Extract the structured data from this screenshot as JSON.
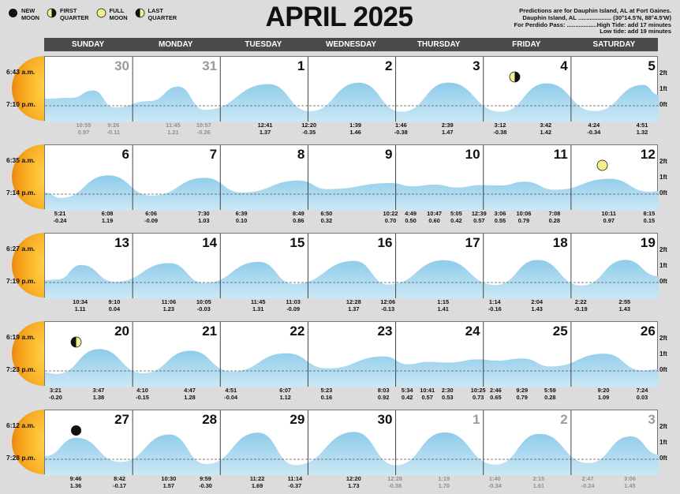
{
  "legend": [
    {
      "icon": "new-moon-icon",
      "label": "NEW\nMOON"
    },
    {
      "icon": "first-quarter-icon",
      "label": "FIRST\nQUARTER"
    },
    {
      "icon": "full-moon-icon",
      "label": "FULL\nMOON"
    },
    {
      "icon": "last-quarter-icon",
      "label": "LAST\nQUARTER"
    }
  ],
  "title": "APRIL 2025",
  "info": {
    "line1": "Predictions are for Dauphin Island, AL at Fort Gaines.",
    "line2": "Dauphin Island, AL .................... (30°14.5'N, 88°4.5'W)",
    "line3": "For Perdido Pass: ..................High Tide: add 17 minutes",
    "line4": "Low tide: add 19 minutes"
  },
  "days": [
    "SUNDAY",
    "MONDAY",
    "TUESDAY",
    "WEDNESDAY",
    "THURSDAY",
    "FRIDAY",
    "SATURDAY"
  ],
  "y_labels": [
    "2ft",
    "1ft",
    "0ft"
  ],
  "colors": {
    "water": "#8ecbea",
    "water_light": "#cbe8f6",
    "sun": "#f2a21a",
    "moon_full": "#f7f08a",
    "header": "#4a4a4a"
  },
  "weeks": [
    {
      "sunrise": "6:43 a.m.",
      "sunset": "7:10 p.m.",
      "dates": [
        "30",
        "31",
        "1",
        "2",
        "3",
        "4",
        "5"
      ],
      "grey": [
        true,
        true,
        false,
        false,
        false,
        false,
        false
      ],
      "moon": {
        "col": 5,
        "phase": "first-quarter-icon"
      },
      "tides": [
        {
          "t": "10:55",
          "h": "0.97",
          "x": 0.45,
          "g": true
        },
        {
          "t": "9:26",
          "h": "-0.11",
          "x": 0.79,
          "g": true
        },
        {
          "t": "11:45",
          "h": "1.21",
          "x": 1.47,
          "g": true
        },
        {
          "t": "10:57",
          "h": "-0.26",
          "x": 1.82,
          "g": true
        },
        {
          "t": "12:41",
          "h": "1.37",
          "x": 2.52
        },
        {
          "t": "12:20",
          "h": "-0.35",
          "x": 2.51,
          "skip": true
        },
        {
          "t": "12:20",
          "h": "-0.35",
          "x": 3.02
        },
        {
          "t": "1:39",
          "h": "1.46",
          "x": 3.55
        },
        {
          "t": "1:46",
          "h": "-0.38",
          "x": 4.07
        },
        {
          "t": "2:39",
          "h": "1.47",
          "x": 4.6
        },
        {
          "t": "3:12",
          "h": "-0.38",
          "x": 5.2
        },
        {
          "t": "3:42",
          "h": "1.42",
          "x": 5.72
        },
        {
          "t": "4:24",
          "h": "-0.34",
          "x": 6.27
        },
        {
          "t": "4:51",
          "h": "1.32",
          "x": 6.82
        }
      ],
      "curve": [
        [
          0,
          0.45
        ],
        [
          0.3,
          0.5
        ],
        [
          0.55,
          0.97
        ],
        [
          0.79,
          -0.11
        ],
        [
          1.2,
          0.3
        ],
        [
          1.52,
          1.21
        ],
        [
          1.82,
          -0.26
        ],
        [
          2.55,
          1.37
        ],
        [
          3.02,
          -0.35
        ],
        [
          3.58,
          1.46
        ],
        [
          4.07,
          -0.38
        ],
        [
          4.6,
          1.47
        ],
        [
          5.2,
          -0.38
        ],
        [
          5.72,
          1.42
        ],
        [
          6.27,
          -0.34
        ],
        [
          6.82,
          1.32
        ],
        [
          7,
          0.7
        ]
      ]
    },
    {
      "sunrise": "6:35 a.m.",
      "sunset": "7:14 p.m.",
      "dates": [
        "6",
        "7",
        "8",
        "9",
        "10",
        "11",
        "12"
      ],
      "grey": [
        false,
        false,
        false,
        false,
        false,
        false,
        false
      ],
      "moon": {
        "col": 6,
        "phase": "full-moon-icon"
      },
      "tides": [
        {
          "t": "5:21",
          "h": "-0.24",
          "x": 0.18
        },
        {
          "t": "6:08",
          "h": "1.19",
          "x": 0.72
        },
        {
          "t": "6:06",
          "h": "-0.09",
          "x": 1.22
        },
        {
          "t": "7:30",
          "h": "1.03",
          "x": 1.82
        },
        {
          "t": "6:39",
          "h": "0.10",
          "x": 2.25
        },
        {
          "t": "8:49",
          "h": "0.86",
          "x": 2.9
        },
        {
          "t": "6:50",
          "h": "0.32",
          "x": 3.22
        },
        {
          "t": "10:22",
          "h": "0.70",
          "x": 3.95
        },
        {
          "t": "4:49",
          "h": "0.50",
          "x": 4.18
        },
        {
          "t": "10:47",
          "h": "0.60",
          "x": 4.45
        },
        {
          "t": "5:05",
          "h": "0.42",
          "x": 4.7
        },
        {
          "t": "12:39",
          "h": "0.57",
          "x": 4.96
        },
        {
          "t": "3:06",
          "h": "0.55",
          "x": 5.2
        },
        {
          "t": "10:06",
          "h": "0.79",
          "x": 5.47
        },
        {
          "t": "7:08",
          "h": "0.28",
          "x": 5.82
        },
        {
          "t": "10:11",
          "h": "0.97",
          "x": 6.44
        },
        {
          "t": "8:15",
          "h": "0.15",
          "x": 6.9
        }
      ],
      "curve": [
        [
          0,
          0.1
        ],
        [
          0.18,
          -0.24
        ],
        [
          0.72,
          1.19
        ],
        [
          1.22,
          -0.09
        ],
        [
          1.82,
          1.03
        ],
        [
          2.25,
          0.1
        ],
        [
          2.9,
          0.86
        ],
        [
          3.22,
          0.32
        ],
        [
          3.95,
          0.7
        ],
        [
          4.18,
          0.5
        ],
        [
          4.45,
          0.6
        ],
        [
          4.7,
          0.42
        ],
        [
          4.96,
          0.57
        ],
        [
          5.2,
          0.55
        ],
        [
          5.47,
          0.79
        ],
        [
          5.82,
          0.28
        ],
        [
          6.44,
          0.97
        ],
        [
          6.9,
          0.15
        ],
        [
          7,
          0.2
        ]
      ]
    },
    {
      "sunrise": "6:27 a.m.",
      "sunset": "7:19 p.m.",
      "dates": [
        "13",
        "14",
        "15",
        "16",
        "17",
        "18",
        "19"
      ],
      "grey": [
        false,
        false,
        false,
        false,
        false,
        false,
        false
      ],
      "moon": null,
      "tides": [
        {
          "t": "10:34",
          "h": "1.11",
          "x": 0.41
        },
        {
          "t": "9:10",
          "h": "0.04",
          "x": 0.8
        },
        {
          "t": "11:06",
          "h": "1.23",
          "x": 1.42
        },
        {
          "t": "10:05",
          "h": "-0.03",
          "x": 1.82
        },
        {
          "t": "11:45",
          "h": "1.31",
          "x": 2.44
        },
        {
          "t": "11:03",
          "h": "-0.09",
          "x": 2.84
        },
        {
          "t": "12:28",
          "h": "1.37",
          "x": 3.53
        },
        {
          "t": "12:06",
          "h": "-0.13",
          "x": 3.92
        },
        {
          "t": "1:15",
          "h": "1.41",
          "x": 4.55
        },
        {
          "t": "1:14",
          "h": "-0.16",
          "x": 5.14
        },
        {
          "t": "2:04",
          "h": "1.43",
          "x": 5.62
        },
        {
          "t": "2:22",
          "h": "-0.19",
          "x": 6.12
        },
        {
          "t": "2:55",
          "h": "1.43",
          "x": 6.62
        }
      ],
      "curve": [
        [
          0,
          0.15
        ],
        [
          0.15,
          0.2
        ],
        [
          0.41,
          1.11
        ],
        [
          0.8,
          0.04
        ],
        [
          1.42,
          1.23
        ],
        [
          1.82,
          -0.03
        ],
        [
          2.44,
          1.31
        ],
        [
          2.84,
          -0.09
        ],
        [
          3.53,
          1.37
        ],
        [
          3.92,
          -0.13
        ],
        [
          4.55,
          1.41
        ],
        [
          5.14,
          -0.16
        ],
        [
          5.62,
          1.43
        ],
        [
          6.12,
          -0.19
        ],
        [
          6.62,
          1.43
        ],
        [
          7,
          0.4
        ]
      ]
    },
    {
      "sunrise": "6:19 a.m.",
      "sunset": "7:23 p.m.",
      "dates": [
        "20",
        "21",
        "22",
        "23",
        "24",
        "25",
        "26"
      ],
      "grey": [
        false,
        false,
        false,
        false,
        false,
        false,
        false
      ],
      "moon": {
        "col": 0,
        "phase": "last-quarter-icon"
      },
      "tides": [
        {
          "t": "3:21",
          "h": "-0.20",
          "x": 0.13
        },
        {
          "t": "3:47",
          "h": "1.38",
          "x": 0.62
        },
        {
          "t": "4:10",
          "h": "-0.15",
          "x": 1.12
        },
        {
          "t": "4:47",
          "h": "1.28",
          "x": 1.66
        },
        {
          "t": "4:51",
          "h": "-0.04",
          "x": 2.13
        },
        {
          "t": "6:07",
          "h": "1.12",
          "x": 2.75
        },
        {
          "t": "5:23",
          "h": "0.16",
          "x": 3.22
        },
        {
          "t": "8:03",
          "h": "0.92",
          "x": 3.87
        },
        {
          "t": "5:34",
          "h": "0.42",
          "x": 4.14
        },
        {
          "t": "10:41",
          "h": "0.57",
          "x": 4.37
        },
        {
          "t": "2:30",
          "h": "0.53",
          "x": 4.6
        },
        {
          "t": "10:25",
          "h": "0.73",
          "x": 4.95
        },
        {
          "t": "2:46",
          "h": "0.65",
          "x": 5.15
        },
        {
          "t": "9:29",
          "h": "0.79",
          "x": 5.45
        },
        {
          "t": "5:59",
          "h": "0.28",
          "x": 5.77
        },
        {
          "t": "9:20",
          "h": "1.09",
          "x": 6.38
        },
        {
          "t": "7:24",
          "h": "0.03",
          "x": 6.82
        }
      ],
      "curve": [
        [
          0,
          -0.1
        ],
        [
          0.13,
          -0.2
        ],
        [
          0.62,
          1.38
        ],
        [
          1.12,
          -0.15
        ],
        [
          1.66,
          1.28
        ],
        [
          2.13,
          -0.04
        ],
        [
          2.75,
          1.12
        ],
        [
          3.22,
          0.16
        ],
        [
          3.87,
          0.92
        ],
        [
          4.14,
          0.42
        ],
        [
          4.37,
          0.57
        ],
        [
          4.6,
          0.53
        ],
        [
          4.95,
          0.73
        ],
        [
          5.15,
          0.65
        ],
        [
          5.45,
          0.79
        ],
        [
          5.77,
          0.28
        ],
        [
          6.38,
          1.09
        ],
        [
          6.82,
          0.03
        ],
        [
          7,
          0.1
        ]
      ]
    },
    {
      "sunrise": "6:12 a.m.",
      "sunset": "7:28 p.m.",
      "dates": [
        "27",
        "28",
        "29",
        "30",
        "1",
        "2",
        "3"
      ],
      "grey": [
        false,
        false,
        false,
        false,
        true,
        true,
        true
      ],
      "moon": {
        "col": 0,
        "phase": "new-moon-icon"
      },
      "tides": [
        {
          "t": "9:46",
          "h": "1.36",
          "x": 0.36
        },
        {
          "t": "8:42",
          "h": "-0.17",
          "x": 0.86
        },
        {
          "t": "10:30",
          "h": "1.57",
          "x": 1.42
        },
        {
          "t": "9:59",
          "h": "-0.30",
          "x": 1.84
        },
        {
          "t": "11:22",
          "h": "1.69",
          "x": 2.43
        },
        {
          "t": "11:14",
          "h": "-0.37",
          "x": 2.86
        },
        {
          "t": "12:20",
          "h": "1.73",
          "x": 3.53
        },
        {
          "t": "12:28",
          "h": "-0.38",
          "x": 4.0,
          "g": true
        },
        {
          "t": "1:19",
          "h": "1.70",
          "x": 4.56,
          "g": true
        },
        {
          "t": "1:40",
          "h": "-0.34",
          "x": 5.14,
          "g": true
        },
        {
          "t": "2:15",
          "h": "1.61",
          "x": 5.64,
          "g": true
        },
        {
          "t": "2:47",
          "h": "-0.24",
          "x": 6.2,
          "g": true
        },
        {
          "t": "3:06",
          "h": "1.45",
          "x": 6.68,
          "g": true
        }
      ],
      "curve": [
        [
          0,
          0.2
        ],
        [
          0.36,
          1.36
        ],
        [
          0.86,
          -0.17
        ],
        [
          1.42,
          1.57
        ],
        [
          1.84,
          -0.3
        ],
        [
          2.43,
          1.69
        ],
        [
          2.86,
          -0.37
        ],
        [
          3.53,
          1.73
        ],
        [
          4.0,
          -0.38
        ],
        [
          4.56,
          1.7
        ],
        [
          5.14,
          -0.34
        ],
        [
          5.64,
          1.61
        ],
        [
          6.2,
          -0.24
        ],
        [
          6.68,
          1.45
        ],
        [
          7,
          0.3
        ]
      ]
    }
  ]
}
